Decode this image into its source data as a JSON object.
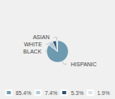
{
  "chart_data": {
    "type": "pie",
    "categories": [
      "HISPANIC",
      "BLACK",
      "WHITE",
      "ASIAN"
    ],
    "values": [
      85.4,
      7.4,
      5.3,
      1.9
    ],
    "value_labels": [
      "85.4%",
      "7.4%",
      "5.3%",
      "1.9%"
    ],
    "colors": [
      "#6e9ab0",
      "#b0c8d8",
      "#2d5070",
      "#d8e4ec"
    ],
    "legend": "bottom"
  }
}
